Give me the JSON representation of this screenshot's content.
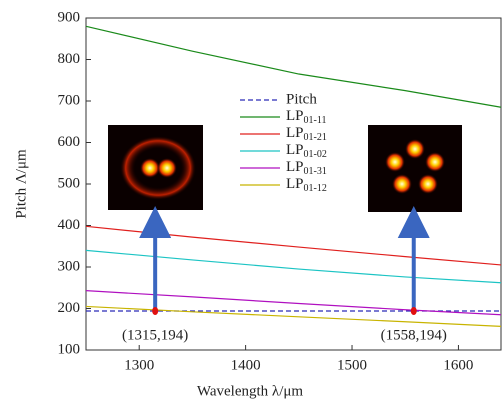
{
  "chart_data": {
    "type": "line",
    "xlabel": "Wavelength λ/μm",
    "ylabel": "Pitch Λ/μm",
    "x": [
      1250,
      1350,
      1450,
      1550,
      1640
    ],
    "series": [
      {
        "name": "Pitch",
        "color": "#2b2bb8",
        "dashed": true,
        "values": [
          194,
          194,
          194,
          194,
          194
        ]
      },
      {
        "name": "LP01-11",
        "color": "#1a8a1a",
        "values": [
          880,
          820,
          765,
          725,
          685
        ]
      },
      {
        "name": "LP01-21",
        "color": "#e0201e",
        "values": [
          398,
          372,
          348,
          325,
          305
        ]
      },
      {
        "name": "LP01-02",
        "color": "#1cc4c4",
        "values": [
          340,
          317,
          295,
          276,
          262
        ]
      },
      {
        "name": "LP01-31",
        "color": "#b010c0",
        "values": [
          243,
          228,
          212,
          197,
          185
        ]
      },
      {
        "name": "LP01-12",
        "color": "#c8b400",
        "values": [
          205,
          192,
          180,
          168,
          157
        ]
      }
    ],
    "points": [
      {
        "x": 1315,
        "y": 194,
        "label": "(1315,194)"
      },
      {
        "x": 1558,
        "y": 194,
        "label": "(1558,194)"
      }
    ],
    "xlim": [
      1250,
      1640
    ],
    "xticks": [
      1300,
      1400,
      1500,
      1600
    ],
    "ylim": [
      100,
      900
    ],
    "yticks": [
      100,
      200,
      300,
      400,
      500,
      600,
      700,
      800,
      900
    ]
  }
}
